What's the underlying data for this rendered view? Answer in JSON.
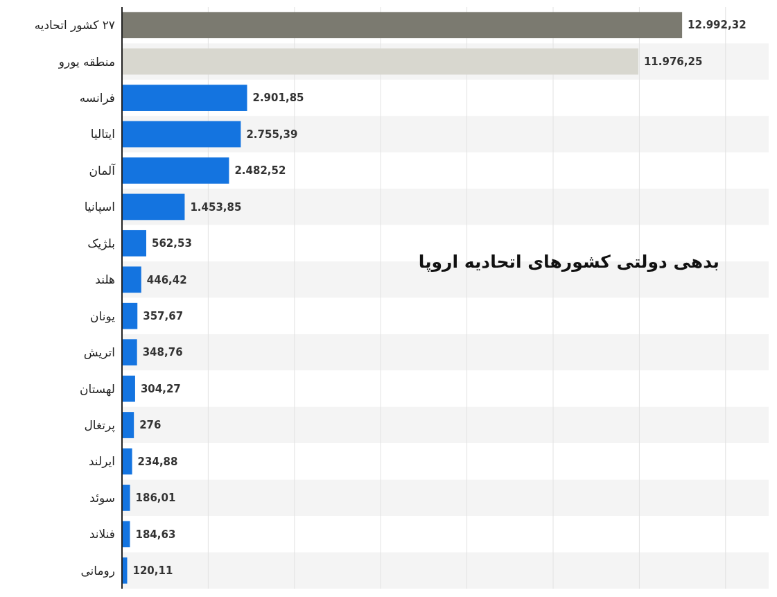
{
  "chart_data": {
    "type": "bar",
    "orientation": "horizontal",
    "title": "بدهی دولتی کشورهای اتحادیه اروپا",
    "categories": [
      "۲۷ کشور اتحادیه",
      "منطقه یورو",
      "فرانسه",
      "ایتالیا",
      "آلمان",
      "اسپانیا",
      "بلژیک",
      "هلند",
      "یونان",
      "اتریش",
      "لهستان",
      "پرتغال",
      "ایرلند",
      "سوئد",
      "فنلاند",
      "رومانی"
    ],
    "values": [
      12992.32,
      11976.25,
      2901.85,
      2755.39,
      2482.52,
      1453.85,
      562.53,
      446.42,
      357.67,
      348.76,
      304.27,
      276,
      234.88,
      186.01,
      184.63,
      120.11
    ],
    "value_labels": [
      "12.992,32",
      "11.976,25",
      "2.901,85",
      "2.755,39",
      "2.482,52",
      "1.453,85",
      "562,53",
      "446,42",
      "357,67",
      "348,76",
      "304,27",
      "276",
      "234,88",
      "186,01",
      "184,63",
      "120,11"
    ],
    "colors": [
      "#7b7a70",
      "#d8d7cf",
      "#1474e0",
      "#1474e0",
      "#1474e0",
      "#1474e0",
      "#1474e0",
      "#1474e0",
      "#1474e0",
      "#1474e0",
      "#1474e0",
      "#1474e0",
      "#1474e0",
      "#1474e0",
      "#1474e0",
      "#1474e0"
    ],
    "xlim": [
      0,
      15000
    ],
    "xticks": [
      {
        "value": 0,
        "label": null
      },
      {
        "value": 2000,
        "label": null
      },
      {
        "value": 4000,
        "label": null
      },
      {
        "value": 6000,
        "label": null
      },
      {
        "value": 8000,
        "label": null
      },
      {
        "value": 10000,
        "label": null
      },
      {
        "value": 12000,
        "label": null
      },
      {
        "value": 14000,
        "label": null
      }
    ],
    "grid": "x",
    "tick_labels": "y"
  }
}
